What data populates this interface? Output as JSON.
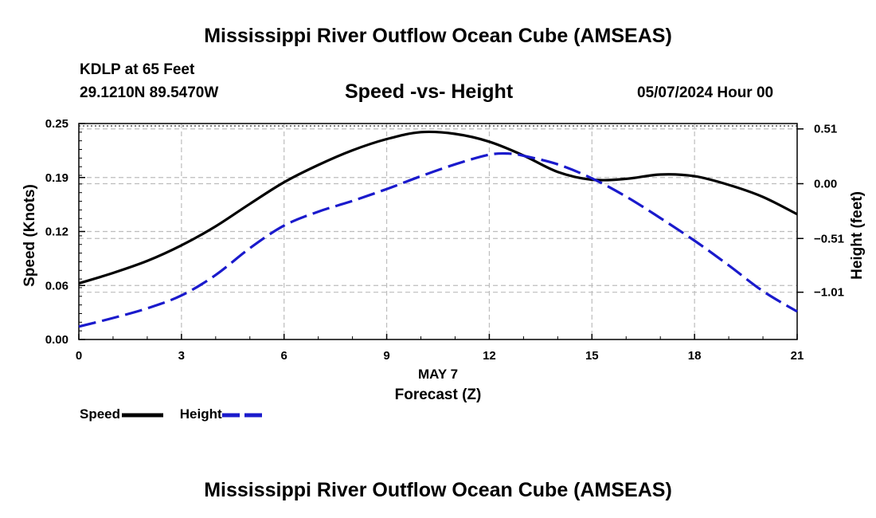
{
  "title": "Mississippi River Outflow Ocean Cube (AMSEAS)",
  "footer_title": "Mississippi River Outflow Ocean Cube (AMSEAS)",
  "station": "KDLP at 65 Feet",
  "coords": "29.1210N  89.5470W",
  "datetime": "05/07/2024 Hour 00",
  "chart_data": {
    "type": "line",
    "title": "Speed -vs- Height",
    "xlabel": "Forecast (Z)",
    "x_sublabel": "MAY 7",
    "ylabel": "Speed (Knots)",
    "y2label": "Height (feet)",
    "xlim": [
      0,
      21
    ],
    "ylim": [
      0,
      0.25
    ],
    "y2lim": [
      -1.45,
      0.56
    ],
    "x_ticks": [
      0,
      3,
      6,
      9,
      12,
      15,
      18,
      21
    ],
    "x_tick_labels": [
      "0",
      "3",
      "6",
      "9",
      "12",
      "15",
      "18",
      "21"
    ],
    "y_ticks": [
      0,
      0.0625,
      0.125,
      0.1875,
      0.25
    ],
    "y_tick_labels": [
      "0.00",
      "0.06",
      "0.12",
      "0.19",
      "0.25"
    ],
    "y2_ticks": [
      -1.01,
      -0.51,
      0,
      0.51
    ],
    "y2_tick_labels": [
      "−1.01",
      "−0.51",
      "0.00",
      "0.51"
    ],
    "grid": true,
    "legend_position": "bottom-left",
    "series": [
      {
        "name": "Speed",
        "axis": "left",
        "color": "#000000",
        "dash": "solid",
        "x": [
          0,
          1,
          2,
          3,
          4,
          5,
          6,
          7,
          8,
          9,
          10,
          11,
          12,
          13,
          14,
          15,
          16,
          17,
          18,
          19,
          20,
          21
        ],
        "values": [
          0.065,
          0.077,
          0.091,
          0.109,
          0.131,
          0.157,
          0.182,
          0.202,
          0.219,
          0.232,
          0.24,
          0.238,
          0.229,
          0.213,
          0.194,
          0.185,
          0.186,
          0.191,
          0.189,
          0.179,
          0.165,
          0.145
        ]
      },
      {
        "name": "Height",
        "axis": "right",
        "color": "#1a1acc",
        "dash": "dashed",
        "x": [
          0,
          1,
          2,
          3,
          4,
          5,
          6,
          7,
          8,
          9,
          10,
          11,
          12,
          12.6,
          13,
          14,
          15,
          16,
          17,
          18,
          19,
          20,
          21
        ],
        "values": [
          -1.33,
          -1.25,
          -1.16,
          -1.04,
          -0.85,
          -0.6,
          -0.39,
          -0.26,
          -0.16,
          -0.05,
          0.07,
          0.18,
          0.27,
          0.28,
          0.26,
          0.18,
          0.05,
          -0.12,
          -0.32,
          -0.53,
          -0.76,
          -1.0,
          -1.19
        ]
      }
    ]
  }
}
